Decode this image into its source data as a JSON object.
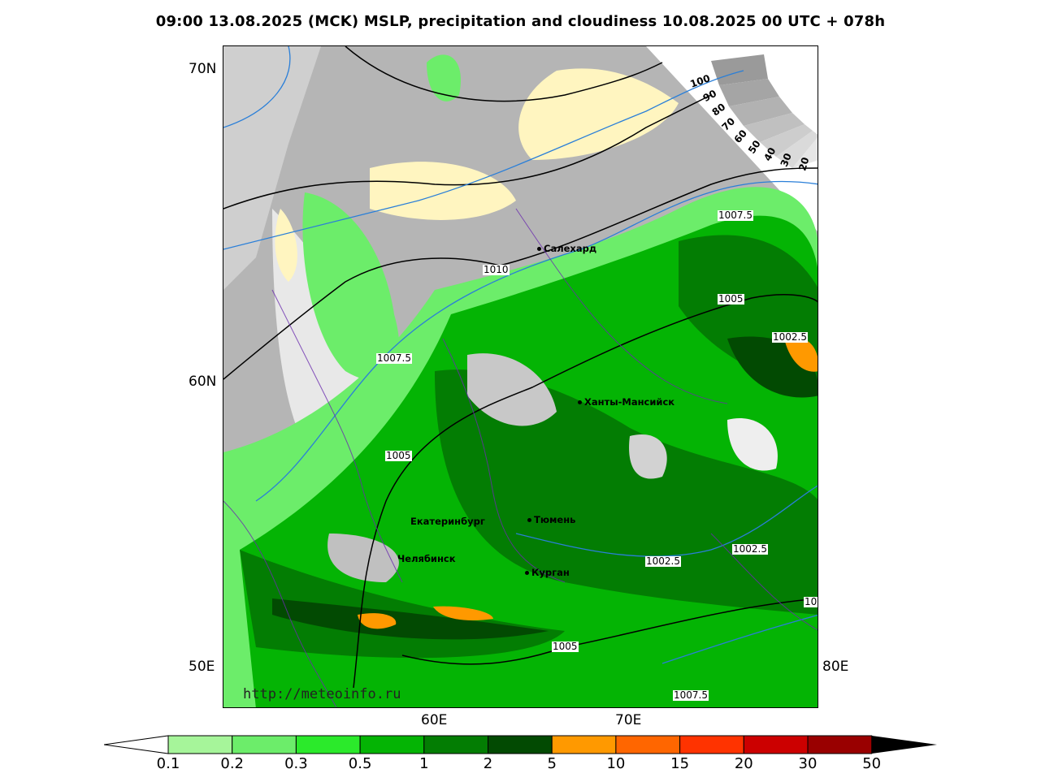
{
  "title": "09:00 13.08.2025 (MCK) MSLP, precipitation and cloudiness 10.08.2025 00 UTC + 078h",
  "axes": {
    "lat_labels": [
      "70N",
      "60N",
      "50E"
    ],
    "lon_labels": [
      "60E",
      "70E",
      "80E"
    ]
  },
  "url": "http://meteoinfo.ru",
  "cities": [
    "Салехард",
    "Ханты-Мансийск",
    "Екатеринбург",
    "Тюмень",
    "Челябинск",
    "Курган"
  ],
  "isobar_labels": [
    "1007.5",
    "1010",
    "1005",
    "1002.5",
    "1007.5",
    "1005",
    "1002.5",
    "1002.5",
    "1005",
    "1007.5",
    "10"
  ],
  "cloud_scale": [
    "100",
    "90",
    "80",
    "70",
    "60",
    "50",
    "40",
    "30",
    "20"
  ],
  "colorbar": {
    "ticks": [
      "0.1",
      "0.2",
      "0.3",
      "0.5",
      "1",
      "2",
      "5",
      "10",
      "15",
      "20",
      "30",
      "50"
    ],
    "colors": [
      "#a6f59a",
      "#6ced6a",
      "#2bea2b",
      "#04b404",
      "#037d03",
      "#024a02",
      "#ff9900",
      "#ff6600",
      "#ff3300",
      "#cc0000",
      "#990000"
    ]
  }
}
